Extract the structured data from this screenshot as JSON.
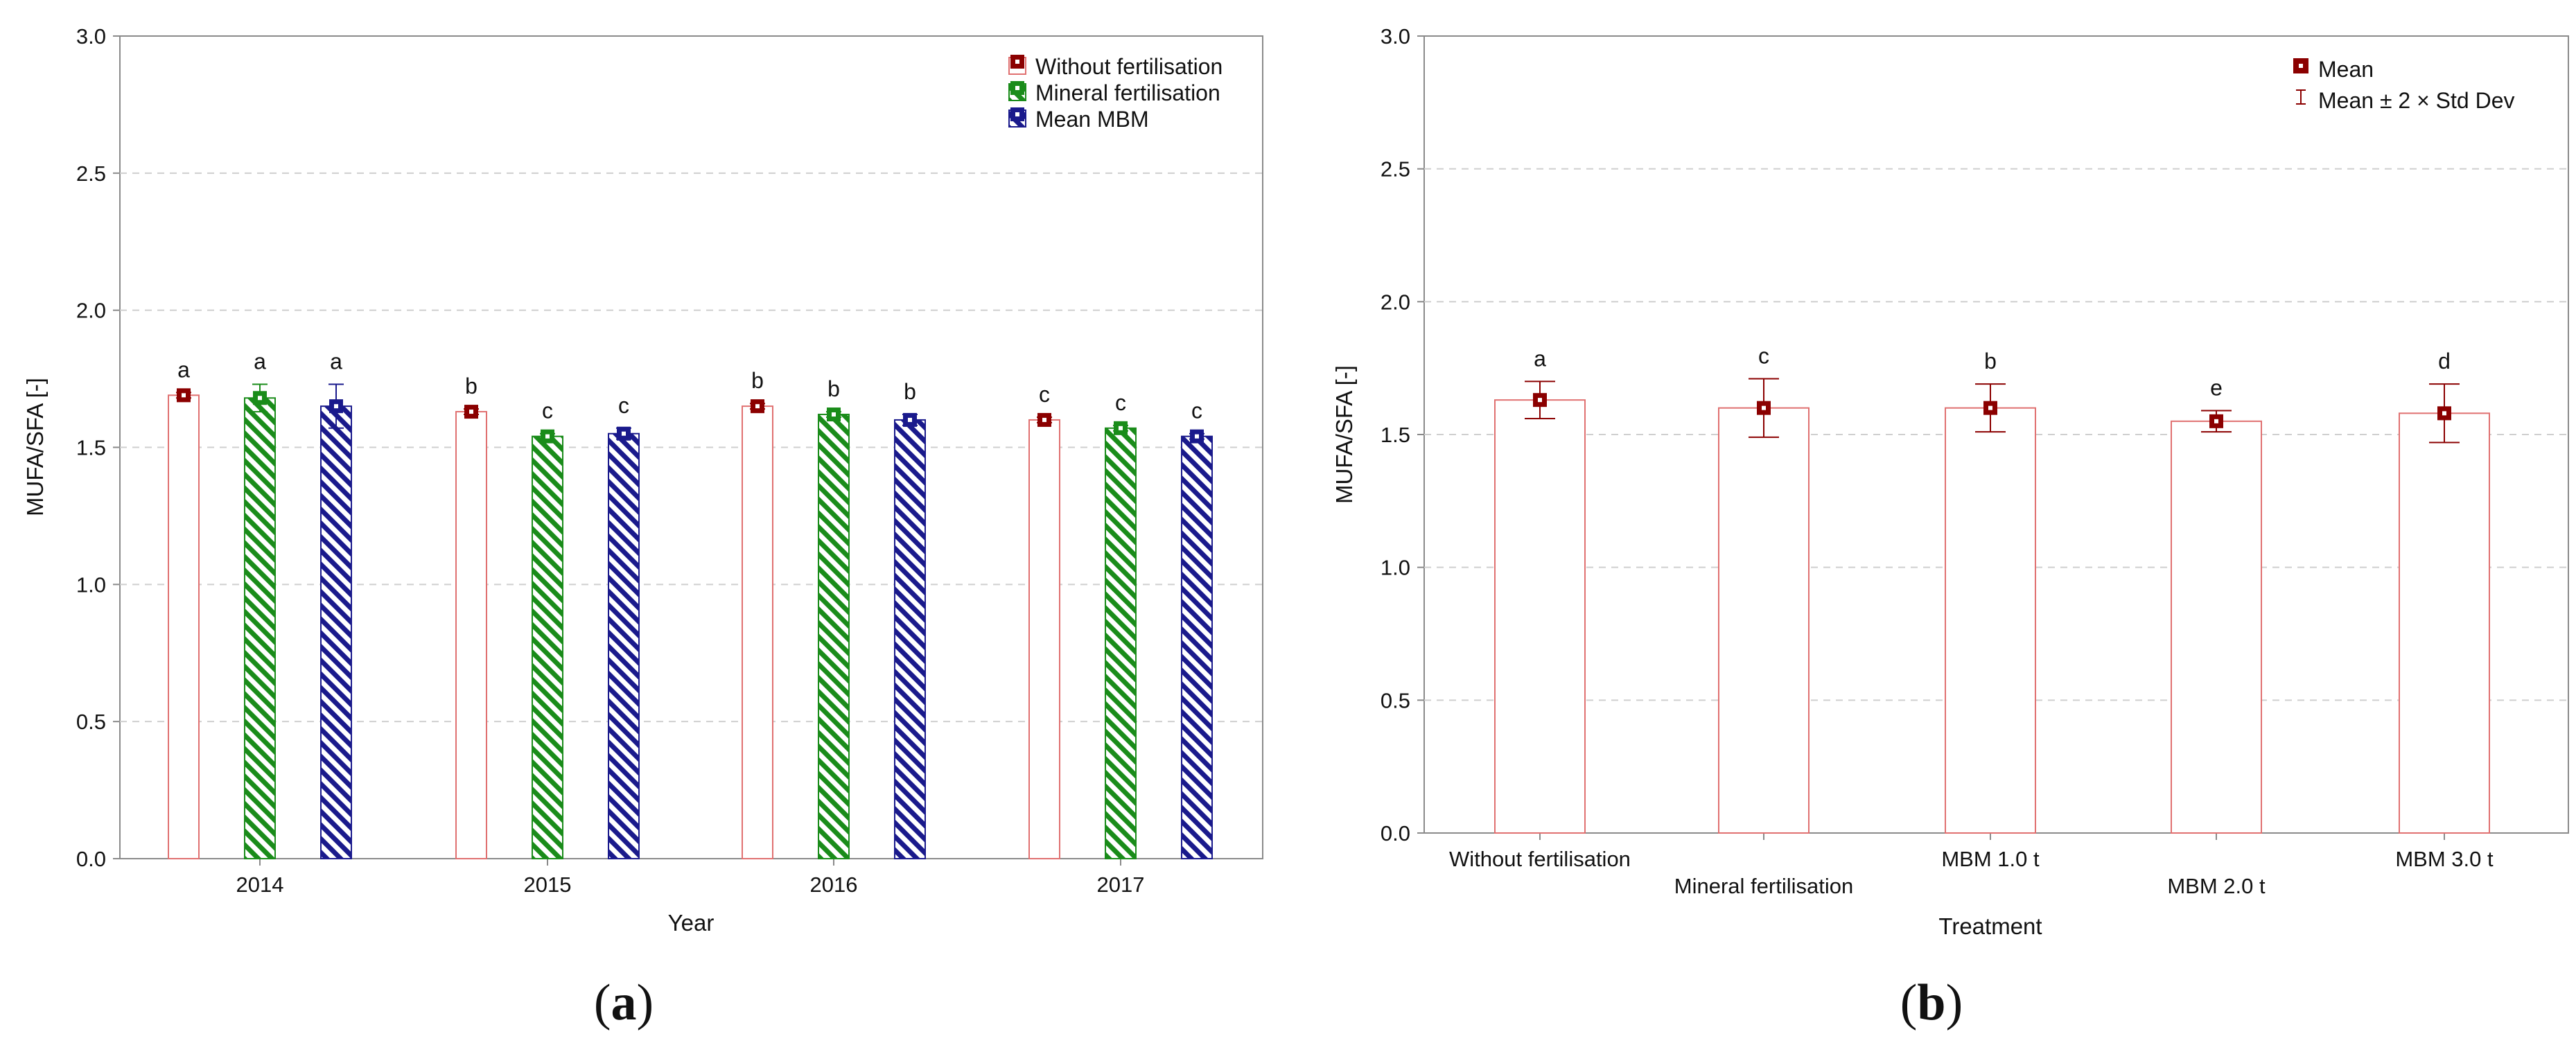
{
  "chart_data": [
    {
      "panel_label": "a",
      "type": "bar",
      "title": "",
      "xlabel": "Year",
      "ylabel": "MUFA/SFA [-]",
      "ylim": [
        0,
        3.0
      ],
      "yticks": [
        "0.0",
        "0.5",
        "1.0",
        "1.5",
        "2.0",
        "2.5",
        "3.0"
      ],
      "grid": true,
      "legend_position": "top-right",
      "categories": [
        "2014",
        "2015",
        "2016",
        "2017"
      ],
      "series": [
        {
          "name": "Without fertilisation",
          "color": "#8b0000",
          "pattern": "none",
          "values": [
            1.69,
            1.63,
            1.65,
            1.6
          ],
          "err": [
            0.01,
            0.01,
            0.01,
            0.01
          ],
          "letters": [
            "a",
            "b",
            "b",
            "c"
          ]
        },
        {
          "name": "Mineral fertilisation",
          "color": "#1a8c1a",
          "pattern": "diagonal-hatch",
          "values": [
            1.68,
            1.54,
            1.62,
            1.57
          ],
          "err": [
            0.05,
            0.01,
            0.01,
            0.01
          ],
          "letters": [
            "a",
            "c",
            "b",
            "c"
          ]
        },
        {
          "name": "Mean MBM",
          "color": "#1a1a8c",
          "pattern": "diagonal-hatch",
          "values": [
            1.65,
            1.55,
            1.6,
            1.54
          ],
          "err": [
            0.08,
            0.02,
            0.02,
            0.01
          ],
          "letters": [
            "a",
            "c",
            "b",
            "c"
          ]
        }
      ]
    },
    {
      "panel_label": "b",
      "type": "bar",
      "title": "",
      "xlabel": "Treatment",
      "ylabel": "MUFA/SFA [-]",
      "ylim": [
        0,
        3.0
      ],
      "yticks": [
        "0.0",
        "0.5",
        "1.0",
        "1.5",
        "2.0",
        "2.5",
        "3.0"
      ],
      "grid": true,
      "legend_position": "top-right",
      "legend": [
        "Mean",
        "Mean ± 2 × Std Dev"
      ],
      "categories": [
        "Without fertilisation",
        "Mineral fertilisation",
        "MBM 1.0 t",
        "MBM 2.0 t",
        "MBM 3.0 t"
      ],
      "series": [
        {
          "name": "Mean",
          "color": "#8b0000",
          "values": [
            1.63,
            1.6,
            1.6,
            1.55,
            1.58
          ],
          "err": [
            0.07,
            0.11,
            0.09,
            0.04,
            0.11
          ],
          "letters": [
            "a",
            "c",
            "b",
            "e",
            "d"
          ]
        }
      ]
    }
  ]
}
